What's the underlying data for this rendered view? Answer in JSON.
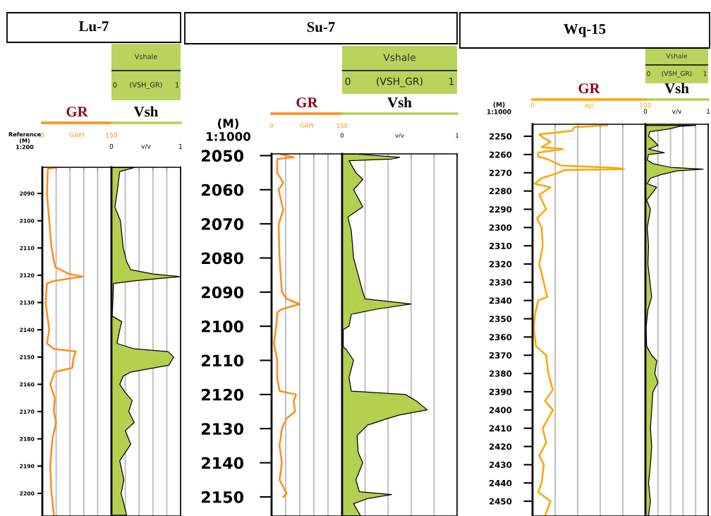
{
  "chart_data": [
    {
      "type": "line",
      "orientation": "horizontal",
      "title": "Lu-7",
      "ylabel": "Reference\n(M)\n1:200",
      "xlabel": "GAPI",
      "xlim": [
        0,
        150
      ],
      "xticks": [
        0,
        {
          "value": 30,
          "label": null
        },
        {
          "value": 60,
          "label": null
        },
        {
          "value": 90,
          "label": null
        },
        {
          "value": 120,
          "label": null
        },
        150
      ],
      "ylim": [
        2208.3,
        2080.4
      ],
      "yticks": [
        2090,
        2100,
        2110,
        2120,
        2130,
        2140,
        2150,
        2160,
        2170,
        2180,
        2190,
        2200
      ],
      "grid": "x",
      "legend": "top",
      "series": [
        {
          "name": "GR",
          "color": "#ff8c1a",
          "x": [
            2080.5,
            2081,
            2090,
            2100,
            2110,
            2117,
            2119.5,
            2120.5,
            2122,
            2123,
            2130,
            2140,
            2145,
            2147,
            2148,
            2150,
            2154,
            2155.5,
            2160,
            2165,
            2170,
            2174,
            2180,
            2190,
            2200,
            2208
          ],
          "values": [
            30,
            12,
            10,
            15,
            20,
            28,
            58,
            88,
            27,
            10,
            7,
            15,
            10,
            25,
            73,
            68,
            65,
            27,
            17,
            27,
            25,
            30,
            22,
            17,
            20,
            25
          ]
        }
      ]
    },
    {
      "type": "area",
      "orientation": "horizontal",
      "subtitle": "Vshale",
      "xlabel": "v/v",
      "xlim": [
        0,
        1
      ],
      "xticks": [
        0,
        {
          "value": 0.2,
          "label": null
        },
        {
          "value": 0.4,
          "label": null
        },
        {
          "value": 0.6,
          "label": null
        },
        {
          "value": 0.8,
          "label": null
        },
        1
      ],
      "ylim": [
        2208.3,
        2080.4
      ],
      "yticks": [
        2090,
        2100,
        2110,
        2120,
        2130,
        2140,
        2150,
        2160,
        2170,
        2180,
        2190,
        2200
      ],
      "tick_labels": "x",
      "grid": "x",
      "legend": "top",
      "annotations": [
        "0",
        "(VSH_GR)",
        "1"
      ],
      "series": [
        {
          "name": "Vsh",
          "color": "#b5cf4e",
          "x": [
            2080.5,
            2082,
            2090,
            2095,
            2100,
            2110,
            2115,
            2118,
            2119.5,
            2120.5,
            2122,
            2123,
            2130,
            2135,
            2137,
            2140,
            2145,
            2147,
            2148,
            2150,
            2153,
            2155.5,
            2157,
            2160,
            2163,
            2166,
            2170,
            2174,
            2177,
            2182,
            2188,
            2195,
            2200,
            2208
          ],
          "values": [
            0.33,
            0.12,
            0.08,
            0.05,
            0.13,
            0.17,
            0.22,
            0.28,
            0.6,
            0.99,
            0.35,
            0.03,
            0.02,
            0.01,
            0.15,
            0.12,
            0.08,
            0.33,
            0.82,
            0.9,
            0.83,
            0.28,
            0.17,
            0.12,
            0.2,
            0.3,
            0.25,
            0.33,
            0.2,
            0.28,
            0.12,
            0.18,
            0.14,
            0.22
          ]
        }
      ]
    },
    {
      "type": "line",
      "orientation": "horizontal",
      "title": "Su-7",
      "ylabel": "(M)\n1:1000",
      "xlabel": "GAPI",
      "xlim": [
        0,
        150
      ],
      "xticks": [
        0,
        {
          "value": 30,
          "label": null
        },
        {
          "value": 60,
          "label": null
        },
        {
          "value": 90,
          "label": null
        },
        {
          "value": 120,
          "label": null
        },
        150
      ],
      "ylim": [
        2155.6,
        2049.5
      ],
      "yticks": [
        2050,
        2060,
        2070,
        2080,
        2090,
        2100,
        2110,
        2120,
        2130,
        2140,
        2150
      ],
      "grid": "x",
      "legend": "top",
      "series": [
        {
          "name": "GR",
          "color": "#ff8c1a",
          "x": [
            2049.6,
            2050.5,
            2051,
            2055,
            2058,
            2060,
            2066,
            2070,
            2080,
            2090,
            2092,
            2093.5,
            2095,
            2096,
            2100,
            2105,
            2110,
            2115,
            2119,
            2120,
            2122,
            2125,
            2127,
            2130,
            2135,
            2140,
            2145,
            2149,
            2150
          ],
          "values": [
            20,
            47,
            12,
            12,
            25,
            15,
            25,
            15,
            17,
            22,
            32,
            60,
            22,
            12,
            10,
            5,
            12,
            12,
            17,
            52,
            47,
            50,
            32,
            22,
            17,
            22,
            17,
            32,
            25
          ]
        }
      ]
    },
    {
      "type": "area",
      "orientation": "horizontal",
      "subtitle": "Vshale",
      "xlabel": "v/v",
      "xlim": [
        0,
        1
      ],
      "xticks": [
        0,
        {
          "value": 0.2,
          "label": null
        },
        {
          "value": 0.4,
          "label": null
        },
        {
          "value": 0.6,
          "label": null
        },
        {
          "value": 0.8,
          "label": null
        },
        1
      ],
      "ylim": [
        2155.6,
        2049.5
      ],
      "yticks": [
        2050,
        2060,
        2070,
        2080,
        2090,
        2100,
        2110,
        2120,
        2130,
        2140,
        2150
      ],
      "tick_labels": "x",
      "grid": "x",
      "legend": "top",
      "annotations": [
        "0",
        "(VSH_GR)",
        "1"
      ],
      "series": [
        {
          "name": "Vsh",
          "color": "#b5cf4e",
          "x": [
            2049.6,
            2050.5,
            2051,
            2051.5,
            2055,
            2057,
            2060,
            2065,
            2068,
            2072,
            2080,
            2085,
            2090,
            2092,
            2093.5,
            2095,
            2096.5,
            2100,
            2101,
            2106,
            2107,
            2110,
            2115,
            2119,
            2120,
            2122,
            2124.5,
            2126,
            2127,
            2129,
            2132,
            2137,
            2140,
            2145,
            2148.5,
            2149.3,
            2150.5,
            2152,
            2155.5
          ],
          "values": [
            0.14,
            0.5,
            0.43,
            0.06,
            0.12,
            0.18,
            0.1,
            0.18,
            0.05,
            0.08,
            0.1,
            0.14,
            0.18,
            0.2,
            0.6,
            0.3,
            0.08,
            0.06,
            0.01,
            0.01,
            0.04,
            0.1,
            0.06,
            0.08,
            0.55,
            0.65,
            0.74,
            0.5,
            0.4,
            0.22,
            0.13,
            0.14,
            0.18,
            0.12,
            0.15,
            0.43,
            0.22,
            0.1,
            0.16
          ]
        }
      ]
    },
    {
      "type": "line",
      "orientation": "horizontal",
      "title": "Wq-15",
      "ylabel": "(M)\n1:1000",
      "xlabel": "api",
      "xlim": [
        0,
        100
      ],
      "xticks": [
        0,
        {
          "value": 20,
          "label": null
        },
        {
          "value": 40,
          "label": null
        },
        {
          "value": 60,
          "label": null
        },
        {
          "value": 80,
          "label": null
        },
        100
      ],
      "ylim": [
        2458.1,
        2243.4
      ],
      "yticks": [
        2250,
        2260,
        2270,
        2280,
        2290,
        2300,
        2310,
        2320,
        2330,
        2340,
        2350,
        2360,
        2370,
        2380,
        2390,
        2400,
        2410,
        2420,
        2430,
        2440,
        2450
      ],
      "grid": "x",
      "legend": "top",
      "series": [
        {
          "name": "GR",
          "color": "#ffa500",
          "x": [
            2244,
            2245,
            2247,
            2249,
            2251,
            2253,
            2256,
            2257,
            2259,
            2261,
            2263,
            2266,
            2267.3,
            2268,
            2268.5,
            2269.5,
            2271,
            2273,
            2276,
            2278,
            2282,
            2290,
            2295,
            2300,
            2310,
            2320,
            2338,
            2340,
            2348,
            2355,
            2365,
            2370,
            2380,
            2389,
            2395,
            2400,
            2410,
            2418,
            2425,
            2430,
            2440,
            2445,
            2450,
            2458
          ],
          "values": [
            66,
            37,
            35,
            6,
            10,
            16,
            8,
            27,
            5,
            5,
            15,
            25,
            73,
            81,
            28,
            25,
            18,
            8,
            2,
            16,
            6,
            12,
            4,
            8,
            9,
            6,
            13,
            5,
            2,
            1,
            3,
            12,
            14,
            18,
            11,
            18,
            9,
            12,
            6,
            10,
            8,
            5,
            16,
            11
          ]
        }
      ]
    },
    {
      "type": "area",
      "orientation": "horizontal",
      "subtitle": "Vshale",
      "xlabel": "v/v",
      "xlim": [
        0,
        1
      ],
      "xticks": [
        0,
        {
          "value": 0.2,
          "label": null
        },
        {
          "value": 0.4,
          "label": null
        },
        {
          "value": 0.6,
          "label": null
        },
        {
          "value": 0.8,
          "label": null
        },
        1
      ],
      "ylim": [
        2458.1,
        2243.4
      ],
      "yticks": [
        2250,
        2260,
        2270,
        2280,
        2290,
        2300,
        2310,
        2320,
        2330,
        2340,
        2350,
        2360,
        2370,
        2380,
        2390,
        2400,
        2410,
        2420,
        2430,
        2440,
        2450
      ],
      "tick_labels": "x",
      "grid": "x",
      "legend": "top",
      "annotations": [
        "0",
        "(VSH_GR)",
        "1"
      ],
      "series": [
        {
          "name": "Vsh",
          "color": "#b5cf4e",
          "x": [
            2244,
            2244.5,
            2246,
            2247.5,
            2250,
            2253,
            2255,
            2257,
            2259,
            2260,
            2263,
            2265,
            2267,
            2268,
            2269,
            2271,
            2273,
            2276,
            2278,
            2285,
            2290,
            2300,
            2310,
            2320,
            2338,
            2345,
            2355,
            2365,
            2370,
            2373,
            2380,
            2385,
            2390,
            2400,
            2410,
            2420,
            2430,
            2440,
            2450,
            2458
          ],
          "values": [
            0.8,
            0.55,
            0.38,
            0.07,
            0.05,
            0.15,
            0.2,
            0.05,
            0.3,
            0.05,
            0.03,
            0.12,
            0.4,
            0.92,
            0.5,
            0.25,
            0.08,
            0.03,
            0.18,
            0.02,
            0.08,
            0.03,
            0.05,
            0.04,
            0.1,
            0.04,
            0.01,
            0.02,
            0.1,
            0.18,
            0.15,
            0.2,
            0.12,
            0.1,
            0.08,
            0.1,
            0.08,
            0.05,
            0.08,
            0.05
          ]
        }
      ]
    }
  ]
}
